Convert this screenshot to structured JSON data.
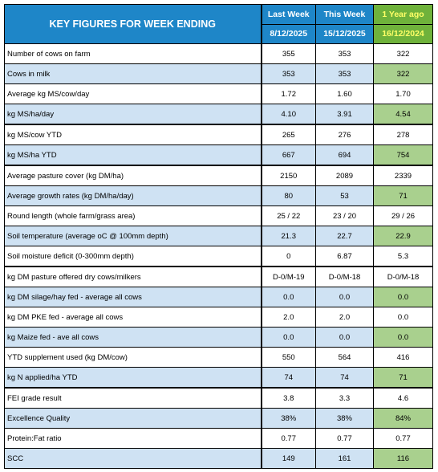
{
  "header": {
    "title": "KEY FIGURES FOR WEEK ENDING",
    "col_last": "Last Week",
    "col_this": "This Week",
    "col_year": "1 Year ago",
    "date_last": "8/12/2025",
    "date_this": "15/12/2025",
    "date_year": "16/12/2024"
  },
  "rows": [
    {
      "label": "Number of cows on farm",
      "last": "355",
      "this": "353",
      "year": "322"
    },
    {
      "label": "Cows in milk",
      "last": "353",
      "this": "353",
      "year": "322"
    },
    {
      "label": "Average kg MS/cow/day",
      "last": "1.72",
      "this": "1.60",
      "year": "1.70"
    },
    {
      "label": "kg MS/ha/day",
      "last": "4.10",
      "this": "3.91",
      "year": "4.54"
    },
    {
      "label": "kg MS/cow YTD",
      "last": "265",
      "this": "276",
      "year": "278"
    },
    {
      "label": "kg MS/ha YTD",
      "last": "667",
      "this": "694",
      "year": "754"
    },
    {
      "label": "Average pasture cover (kg DM/ha)",
      "last": "2150",
      "this": "2089",
      "year": "2339"
    },
    {
      "label": "Average growth rates (kg DM/ha/day)",
      "last": "80",
      "this": "53",
      "year": "71"
    },
    {
      "label": "Round length (whole farm/grass area)",
      "last": "25 / 22",
      "this": "23 / 20",
      "year": "29 / 26"
    },
    {
      "label": "Soil temperature (average oC  @ 100mm depth)",
      "last": "21.3",
      "this": "22.7",
      "year": "22.9"
    },
    {
      "label": "Soil moisture deficit (0-300mm depth)",
      "last": "0",
      "this": "6.87",
      "year": "5.3"
    },
    {
      "label": "kg DM pasture offered dry cows/milkers",
      "last": "D-0/M-19",
      "this": "D-0/M-18",
      "year": "D-0/M-18"
    },
    {
      "label": "kg DM silage/hay fed - average all cows",
      "last": "0.0",
      "this": "0.0",
      "year": "0.0"
    },
    {
      "label": "kg DM PKE fed - average all cows",
      "last": "2.0",
      "this": "2.0",
      "year": "0.0"
    },
    {
      "label": "kg Maize fed - ave all cows",
      "last": "0.0",
      "this": "0.0",
      "year": "0.0"
    },
    {
      "label": "YTD supplement used (kg DM/cow)",
      "last": "550",
      "this": "564",
      "year": "416"
    },
    {
      "label": "kg N applied/ha YTD",
      "last": "74",
      "this": "74",
      "year": "71"
    },
    {
      "label": "FEI grade result",
      "last": "3.8",
      "this": "3.3",
      "year": "4.6"
    },
    {
      "label": "Excellence Quality",
      "last": "38%",
      "this": "38%",
      "year": "84%"
    },
    {
      "label": "Protein:Fat ratio",
      "last": "0.77",
      "this": "0.77",
      "year": "0.77"
    },
    {
      "label": "SCC",
      "last": "149",
      "this": "161",
      "year": "116"
    }
  ]
}
